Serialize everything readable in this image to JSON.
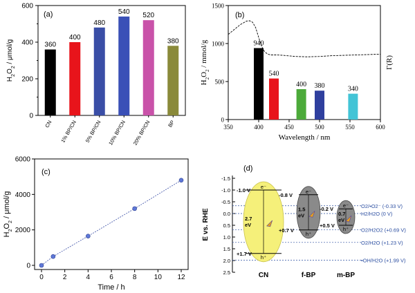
{
  "chart_data": [
    {
      "type": "bar",
      "panel_label": "(a)",
      "categories": [
        "CN",
        "1% BP/CN",
        "5% BP/CN",
        "10% BP/CN",
        "20% BP/CN",
        "BP"
      ],
      "values": [
        360,
        400,
        480,
        540,
        520,
        380
      ],
      "value_labels": [
        "360",
        "400",
        "480",
        "540",
        "520",
        "380"
      ],
      "colors": [
        "#000000",
        "#e8141b",
        "#3a4ea6",
        "#3a50b7",
        "#c952a9",
        "#8a8a3a"
      ],
      "ylabel": "H2O2 / μmol/g",
      "ylabel_parts": {
        "pre": "H",
        "s1": "2",
        "mid": "O",
        "s2": "2",
        "post": " / μmol/g"
      },
      "ylim": [
        0,
        600
      ],
      "yticks": [
        "0",
        "200",
        "400",
        "600"
      ]
    },
    {
      "type": "bar",
      "panel_label": "(b)",
      "x": [
        400,
        425,
        470,
        500,
        555
      ],
      "values": [
        940,
        540,
        400,
        380,
        340
      ],
      "value_labels": [
        "940",
        "540",
        "400",
        "380",
        "340"
      ],
      "colors": [
        "#000000",
        "#e8141b",
        "#4caa3a",
        "#2f3f9e",
        "#42c4d6"
      ],
      "absorbance_curve": {
        "name": "Γ(R)",
        "x": [
          350,
          360,
          370,
          380,
          385,
          390,
          395,
          400,
          405,
          410,
          415,
          420,
          430,
          440,
          460,
          480,
          500,
          520,
          540,
          560,
          580,
          600
        ],
        "y": [
          1120,
          1185,
          1250,
          1295,
          1300,
          1280,
          1210,
          1080,
          960,
          890,
          860,
          850,
          850,
          845,
          830,
          825,
          830,
          840,
          845,
          850,
          855,
          860
        ]
      },
      "xlabel": "Wavelength / nm",
      "ylabel": "H2O2 / mmol/g",
      "ylabel_parts": {
        "pre": "H",
        "s1": "2",
        "mid": "O",
        "s2": "2",
        "post": " / mmol/g"
      },
      "y2label": "Γ(R)",
      "xlim": [
        350,
        600
      ],
      "ylim": [
        0,
        1500
      ],
      "xticks": [
        "350",
        "400",
        "450",
        "500",
        "550",
        "600"
      ],
      "yticks": [
        "0",
        "500",
        "1000",
        "1500"
      ]
    },
    {
      "type": "line",
      "panel_label": "(c)",
      "x": [
        0,
        1,
        4,
        8,
        12
      ],
      "y": [
        0,
        500,
        1650,
        3200,
        4800
      ],
      "line_color": "#3a4ea6",
      "xlabel": "Time / h",
      "ylabel": "H2O2 / μmol/g",
      "ylabel_parts": {
        "pre": "H",
        "s1": "2",
        "mid": "O",
        "s2": "2",
        "post": " / μmol/g"
      },
      "xlim": [
        0,
        12
      ],
      "ylim": [
        0,
        6000
      ],
      "xticks": [
        "0",
        "2",
        "4",
        "6",
        "8",
        "10",
        "12"
      ],
      "yticks": [
        "0",
        "2000",
        "4000",
        "6000"
      ]
    },
    {
      "type": "diagram",
      "panel_label": "(d)",
      "ylabel": "E vs. RHE",
      "ylim": [
        -1.5,
        2.5
      ],
      "yticks": [
        "-1.5",
        "-1.0",
        "-0.5",
        "0.0",
        "0.5",
        "1.0",
        "1.5",
        "2.0",
        "2.5"
      ],
      "semiconductors": [
        {
          "name": "CN",
          "cb": -1.0,
          "vb": 1.7,
          "cb_label": "-1.0 V",
          "vb_label": "+1.7 V",
          "gap_label": "2.7",
          "gap_unit": "eV",
          "color": "#f5f07a"
        },
        {
          "name": "f-BP",
          "cb": -0.8,
          "vb": 0.7,
          "cb_label": "-0.8 V",
          "vb_label": "+0.7 V",
          "gap_label": "1.5",
          "gap_unit": "eV",
          "color": "#8a8a8a"
        },
        {
          "name": "m-BP",
          "cb": -0.2,
          "vb": 0.5,
          "cb_label": "-0.2 V",
          "vb_label": "+0.5 V",
          "gap_label": "0.7",
          "gap_unit": "eV",
          "color": "#8a8a8a"
        }
      ],
      "carrier_labels": {
        "electron": "e⁻",
        "hole": "h⁺"
      },
      "redox_levels": [
        {
          "label": "O2/•O2⁻  (-0.33 V)",
          "E": -0.33
        },
        {
          "label": "H2/H2O  (0 V)",
          "E": 0.0
        },
        {
          "label": "O2/H2O2  (+0.69 V)",
          "E": 0.69
        },
        {
          "label": "O2/H2O  (+1.23 V)",
          "E": 1.23
        },
        {
          "label": "•OH/H2O (+1.99 V)",
          "E": 1.99
        }
      ]
    }
  ]
}
